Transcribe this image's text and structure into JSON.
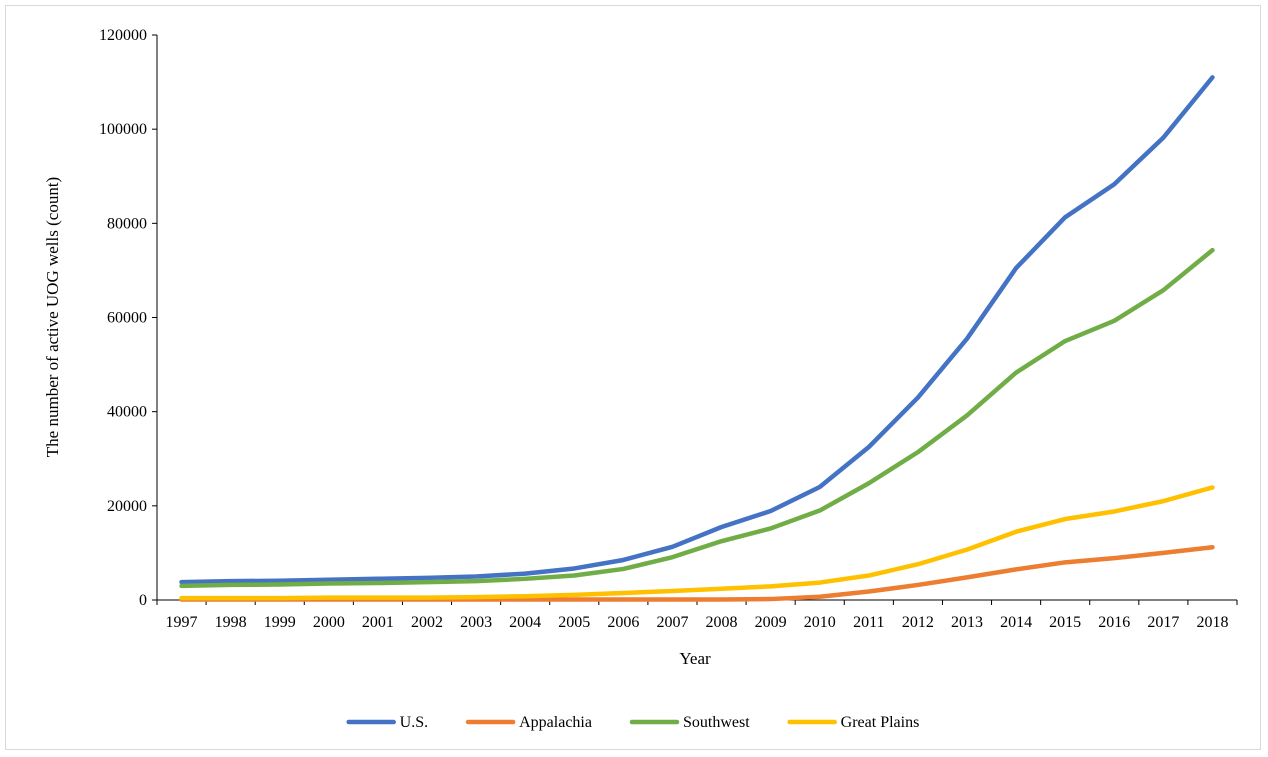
{
  "chart_data": {
    "type": "line",
    "title": "",
    "xlabel": "Year",
    "ylabel": "The number of active UOG wells (count)",
    "ylim": [
      0,
      120000
    ],
    "yticks": [
      "0",
      "20000",
      "40000",
      "60000",
      "80000",
      "100000",
      "120000"
    ],
    "x": [
      "1997",
      "1998",
      "1999",
      "2000",
      "2001",
      "2002",
      "2003",
      "2004",
      "2005",
      "2006",
      "2007",
      "2008",
      "2009",
      "2010",
      "2011",
      "2012",
      "2013",
      "2014",
      "2015",
      "2016",
      "2017",
      "2018"
    ],
    "grid": false,
    "legend_position": "bottom",
    "series": [
      {
        "name": "U.S.",
        "color": "#4472C4",
        "values": [
          3800,
          4000,
          4100,
          4300,
          4500,
          4700,
          5000,
          5600,
          6700,
          8500,
          11300,
          15500,
          18900,
          24000,
          32500,
          43000,
          55500,
          70500,
          81300,
          88300,
          98200,
          111000
        ]
      },
      {
        "name": "Appalachia",
        "color": "#ED7D31",
        "values": [
          100,
          100,
          100,
          100,
          100,
          100,
          100,
          100,
          100,
          100,
          100,
          100,
          200,
          700,
          1800,
          3200,
          4800,
          6500,
          8000,
          8900,
          10000,
          11200
        ]
      },
      {
        "name": "Southwest",
        "color": "#70AD47",
        "values": [
          3000,
          3200,
          3300,
          3500,
          3600,
          3800,
          4000,
          4500,
          5200,
          6600,
          9100,
          12500,
          15200,
          19000,
          24800,
          31400,
          39200,
          48300,
          55000,
          59300,
          65800,
          74300
        ]
      },
      {
        "name": "Great Plains",
        "color": "#FFC000",
        "values": [
          400,
          400,
          400,
          500,
          500,
          500,
          600,
          800,
          1100,
          1500,
          1900,
          2400,
          2900,
          3700,
          5200,
          7600,
          10700,
          14500,
          17200,
          18800,
          21000,
          23900
        ]
      }
    ]
  }
}
